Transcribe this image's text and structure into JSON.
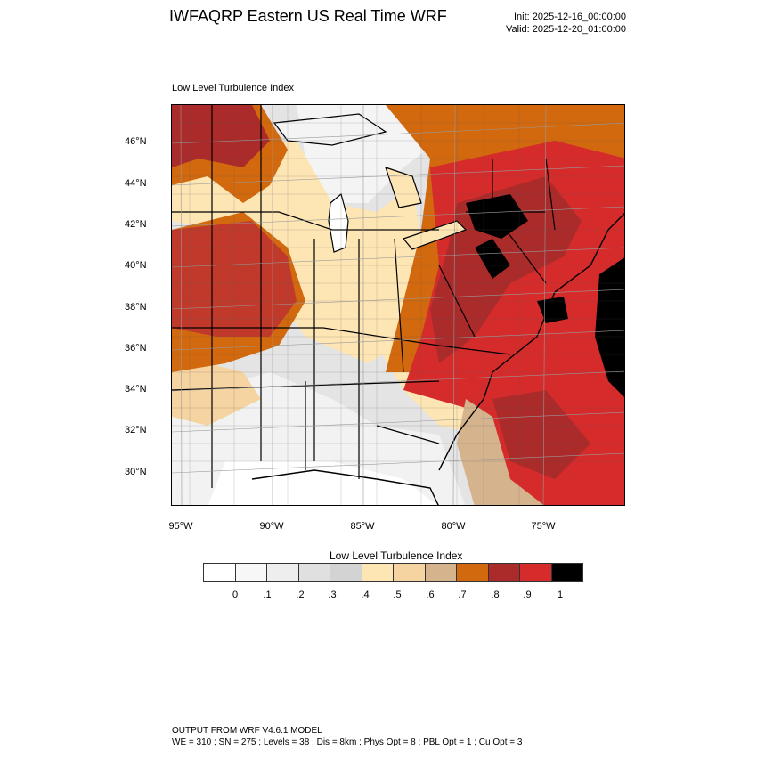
{
  "header": {
    "title": "IWFAQRP Eastern US Real Time WRF",
    "init": "Init: 2025-12-16_00:00:00",
    "valid": "Valid: 2025-12-20_01:00:00"
  },
  "map": {
    "label": "Low Level Turbulence Index",
    "lat_labels": [
      "46°N",
      "44°N",
      "42°N",
      "40°N",
      "38°N",
      "36°N",
      "34°N",
      "32°N",
      "30°N"
    ],
    "lon_labels": [
      "95°W",
      "90°W",
      "85°W",
      "80°W",
      "75°W"
    ]
  },
  "colorbar": {
    "title": "Low Level Turbulence Index",
    "labels": [
      "0",
      ".1",
      ".2",
      ".3",
      ".4",
      ".5",
      ".6",
      ".7",
      ".8",
      ".9",
      "1"
    ],
    "colors": [
      "#ffffff",
      "#f7f7f7",
      "#eeeeee",
      "#e0e0e0",
      "#d3d3d3",
      "#fde5b4",
      "#f6d4a1",
      "#d5b38d",
      "#d2690e",
      "#ab2a2a",
      "#d62b2b",
      "#000000"
    ]
  },
  "footer": {
    "line1": "OUTPUT FROM WRF V4.6.1 MODEL",
    "line2": "WE = 310 ; SN = 275 ; Levels = 38 ; Dis = 8km ; Phys Opt = 8 ; PBL Opt = 1 ; Cu Opt = 3"
  }
}
